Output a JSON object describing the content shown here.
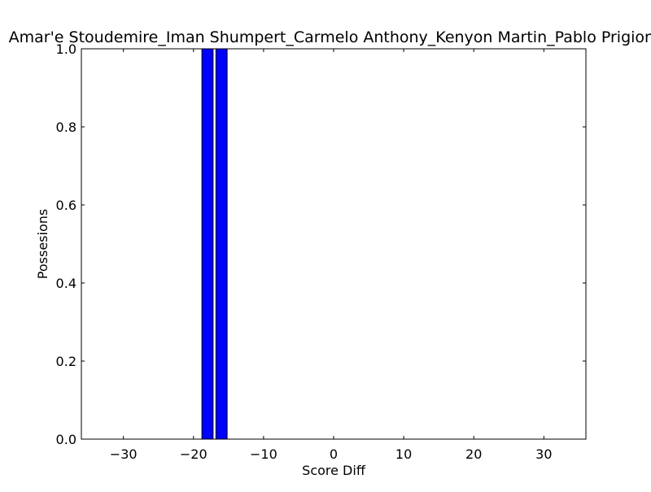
{
  "chart_data": {
    "type": "bar",
    "title": "Amar'e Stoudemire_Iman Shumpert_Carmelo Anthony_Kenyon Martin_Pablo Prigioni",
    "xlabel": "Score Diff",
    "ylabel": "Possesions",
    "xlim": [
      -36,
      36
    ],
    "ylim": [
      0,
      1.0
    ],
    "xticks": [
      -30,
      -20,
      -10,
      0,
      10,
      20,
      30
    ],
    "xtick_labels": [
      "−30",
      "−20",
      "−10",
      "0",
      "10",
      "20",
      "30"
    ],
    "yticks": [
      0,
      0.2,
      0.4,
      0.6,
      0.8,
      1.0
    ],
    "ytick_labels": [
      "0.0",
      "0.2",
      "0.4",
      "0.6",
      "0.8",
      "1.0"
    ],
    "grid": false,
    "bars": [
      {
        "x": -18,
        "width": 1.6,
        "value": 1.0
      },
      {
        "x": -16,
        "width": 1.6,
        "value": 1.0
      }
    ],
    "bar_color": "#0000ff",
    "edge_color": "#000000"
  }
}
